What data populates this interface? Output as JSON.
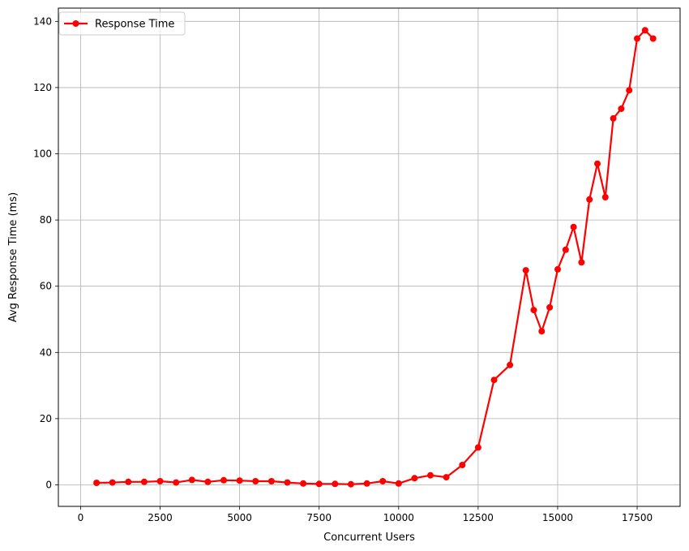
{
  "chart_data": {
    "type": "line",
    "title": "",
    "xlabel": "Concurrent Users",
    "ylabel": "Avg Response Time (ms)",
    "xlim": [
      -700,
      18850
    ],
    "ylim": [
      -6.5,
      144
    ],
    "xticks": [
      0,
      2500,
      5000,
      7500,
      10000,
      12500,
      15000,
      17500
    ],
    "xtick_labels": [
      "0",
      "2500",
      "5000",
      "7500",
      "10000",
      "12500",
      "15000",
      "17500"
    ],
    "yticks": [
      0,
      20,
      40,
      60,
      80,
      100,
      120,
      140
    ],
    "ytick_labels": [
      "0",
      "20",
      "40",
      "60",
      "80",
      "100",
      "120",
      "140"
    ],
    "grid": true,
    "legend_position": "top-left",
    "series": [
      {
        "name": "Response Time",
        "color": "#ff0000",
        "marker": "circle",
        "x": [
          500,
          1000,
          1500,
          2000,
          2500,
          3000,
          3500,
          4000,
          4500,
          5000,
          5500,
          6000,
          6500,
          7000,
          7500,
          8000,
          8500,
          9000,
          9500,
          10000,
          10500,
          11000,
          11500,
          12000,
          12500,
          13000,
          13500,
          14000,
          14250,
          14500,
          14750,
          15000,
          15250,
          15500,
          15750,
          16000,
          16250,
          16500,
          16750,
          17000,
          17250,
          17500,
          17750,
          18000
        ],
        "y": [
          0.6,
          0.7,
          0.9,
          0.9,
          1.1,
          0.7,
          1.5,
          0.9,
          1.4,
          1.3,
          1.1,
          1.1,
          0.7,
          0.4,
          0.3,
          0.3,
          0.2,
          0.4,
          1.1,
          0.4,
          2.0,
          2.9,
          2.3,
          6.0,
          11.3,
          31.7,
          36.2,
          64.8,
          52.8,
          46.4,
          53.6,
          65.1,
          71.0,
          77.9,
          67.2,
          86.2,
          97.0,
          86.9,
          110.7,
          113.6,
          119.2,
          134.8,
          137.3,
          134.8
        ]
      }
    ]
  }
}
